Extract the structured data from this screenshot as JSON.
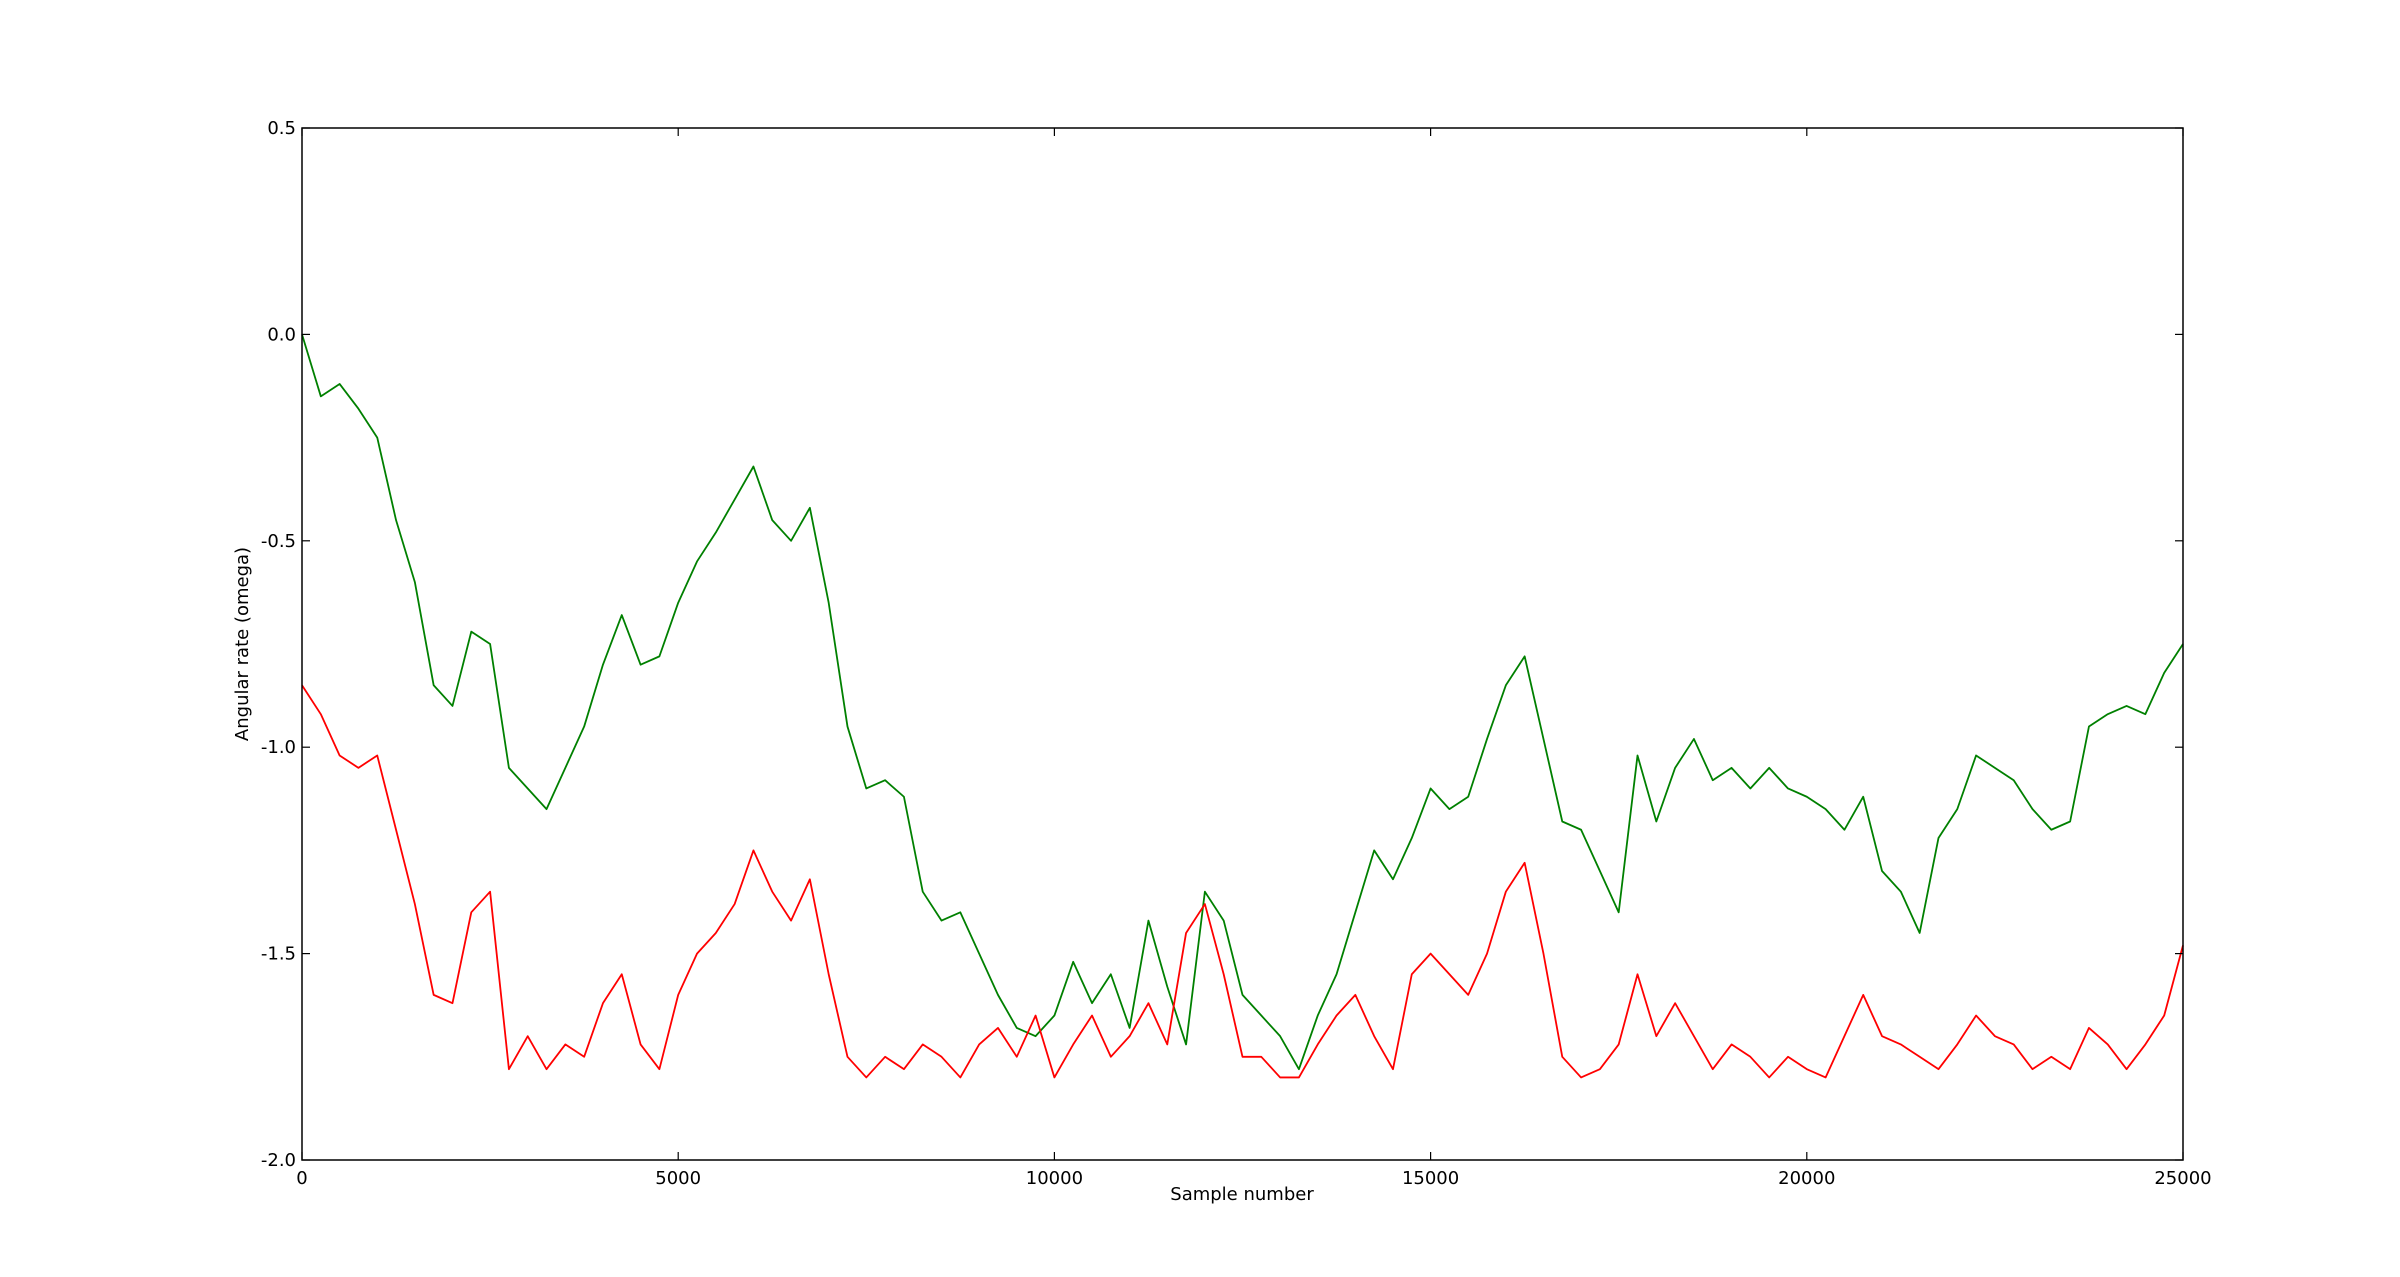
{
  "chart_data": {
    "type": "line",
    "xlabel": "Sample number",
    "ylabel": "Angular rate (omega)",
    "xlim": [
      0,
      25000
    ],
    "ylim": [
      -2.0,
      0.5
    ],
    "xticks": [
      0,
      5000,
      10000,
      15000,
      20000,
      25000
    ],
    "yticks": [
      {
        "value": -2.0,
        "label": "-2.0"
      },
      -1.5,
      {
        "value": -1.0,
        "label": "-1.0"
      },
      -0.5,
      {
        "value": 0.0,
        "label": "0.0"
      },
      0.5
    ],
    "grid": false,
    "x": [
      0,
      250,
      500,
      750,
      1000,
      1250,
      1500,
      1750,
      2000,
      2250,
      2500,
      2750,
      3000,
      3250,
      3500,
      3750,
      4000,
      4250,
      4500,
      4750,
      5000,
      5250,
      5500,
      5750,
      6000,
      6250,
      6500,
      6750,
      7000,
      7250,
      7500,
      7750,
      8000,
      8250,
      8500,
      8750,
      9000,
      9250,
      9500,
      9750,
      10000,
      10250,
      10500,
      10750,
      11000,
      11250,
      11500,
      11750,
      12000,
      12250,
      12500,
      12750,
      13000,
      13250,
      13500,
      13750,
      14000,
      14250,
      14500,
      14750,
      15000,
      15250,
      15500,
      15750,
      16000,
      16250,
      16500,
      16750,
      17000,
      17250,
      17500,
      17750,
      18000,
      18250,
      18500,
      18750,
      19000,
      19250,
      19500,
      19750,
      20000,
      20250,
      20500,
      20750,
      21000,
      21250,
      21500,
      21750,
      22000,
      22250,
      22500,
      22750,
      23000,
      23250,
      23500,
      23750,
      24000,
      24250,
      24500,
      24750,
      25000
    ],
    "series": [
      {
        "color": "#008000",
        "values": [
          0.0,
          -0.15,
          -0.12,
          -0.18,
          -0.25,
          -0.45,
          -0.6,
          -0.85,
          -0.9,
          -0.72,
          -0.75,
          -1.05,
          -1.1,
          -1.15,
          -1.05,
          -0.95,
          -0.8,
          -0.68,
          -0.8,
          -0.78,
          -0.65,
          -0.55,
          -0.48,
          -0.4,
          -0.32,
          -0.45,
          -0.5,
          -0.42,
          -0.65,
          -0.95,
          -1.1,
          -1.08,
          -1.12,
          -1.35,
          -1.42,
          -1.4,
          -1.5,
          -1.6,
          -1.68,
          -1.7,
          -1.65,
          -1.52,
          -1.62,
          -1.55,
          -1.68,
          -1.42,
          -1.58,
          -1.72,
          -1.35,
          -1.42,
          -1.6,
          -1.65,
          -1.7,
          -1.78,
          -1.65,
          -1.55,
          -1.4,
          -1.25,
          -1.32,
          -1.22,
          -1.1,
          -1.15,
          -1.12,
          -0.98,
          -0.85,
          -0.78,
          -0.98,
          -1.18,
          -1.2,
          -1.3,
          -1.4,
          -1.02,
          -1.18,
          -1.05,
          -0.98,
          -1.08,
          -1.05,
          -1.1,
          -1.05,
          -1.1,
          -1.12,
          -1.15,
          -1.2,
          -1.12,
          -1.3,
          -1.35,
          -1.45,
          -1.22,
          -1.15,
          -1.02,
          -1.05,
          -1.08,
          -1.15,
          -1.2,
          -1.18,
          -0.95,
          -0.92,
          -0.9,
          -0.92,
          -0.82,
          -0.75
        ]
      },
      {
        "color": "#ff0000",
        "values": [
          -0.85,
          -0.92,
          -1.02,
          -1.05,
          -1.02,
          -1.2,
          -1.38,
          -1.6,
          -1.62,
          -1.4,
          -1.35,
          -1.78,
          -1.7,
          -1.78,
          -1.72,
          -1.75,
          -1.62,
          -1.55,
          -1.72,
          -1.78,
          -1.6,
          -1.5,
          -1.45,
          -1.38,
          -1.25,
          -1.35,
          -1.42,
          -1.32,
          -1.55,
          -1.75,
          -1.8,
          -1.75,
          -1.78,
          -1.72,
          -1.75,
          -1.8,
          -1.72,
          -1.68,
          -1.75,
          -1.65,
          -1.8,
          -1.72,
          -1.65,
          -1.75,
          -1.7,
          -1.62,
          -1.72,
          -1.45,
          -1.38,
          -1.55,
          -1.75,
          -1.75,
          -1.8,
          -1.8,
          -1.72,
          -1.65,
          -1.6,
          -1.7,
          -1.78,
          -1.55,
          -1.5,
          -1.55,
          -1.6,
          -1.5,
          -1.35,
          -1.28,
          -1.5,
          -1.75,
          -1.8,
          -1.78,
          -1.72,
          -1.55,
          -1.7,
          -1.62,
          -1.7,
          -1.78,
          -1.72,
          -1.75,
          -1.8,
          -1.75,
          -1.78,
          -1.8,
          -1.7,
          -1.6,
          -1.7,
          -1.72,
          -1.75,
          -1.78,
          -1.72,
          -1.65,
          -1.7,
          -1.72,
          -1.78,
          -1.75,
          -1.78,
          -1.68,
          -1.72,
          -1.78,
          -1.72,
          -1.65,
          -1.48
        ]
      }
    ]
  }
}
